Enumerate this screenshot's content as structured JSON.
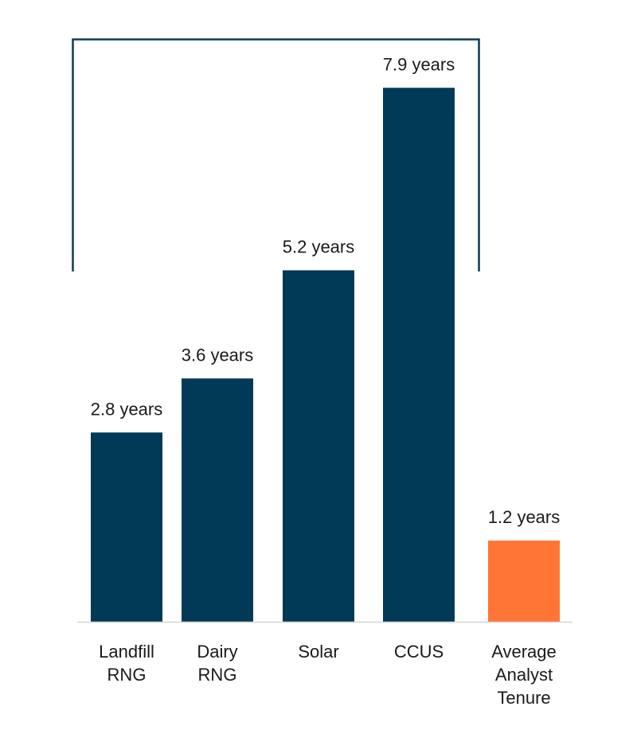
{
  "chart_data": {
    "type": "bar",
    "title": "",
    "xlabel": "",
    "ylabel": "",
    "unit": "years",
    "ylim": [
      0,
      7.9
    ],
    "grid": false,
    "legend": "none",
    "categories": [
      [
        "Landfill",
        "RNG"
      ],
      [
        "Dairy",
        "RNG"
      ],
      [
        "Solar"
      ],
      [
        "CCUS"
      ],
      [
        "Average",
        "Analyst",
        "Tenure"
      ]
    ],
    "values": [
      2.8,
      3.6,
      5.2,
      7.9,
      1.2
    ],
    "value_labels": [
      "2.8 years",
      "3.6 years",
      "5.2 years",
      "7.9 years",
      "1.2 years"
    ],
    "colors": [
      "#003a57",
      "#003a57",
      "#003a57",
      "#003a57",
      "#ff7535"
    ],
    "bracket": {
      "spans_categories": [
        0,
        3
      ],
      "color": "#0d3b52"
    }
  }
}
